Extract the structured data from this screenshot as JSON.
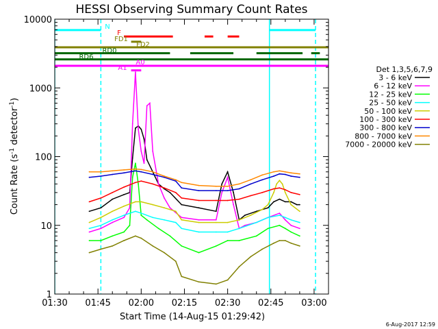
{
  "chart_data": {
    "type": "line",
    "title": "HESSI Observing Summary Count Rates",
    "xlabel": "Start Time (14-Aug-15 01:29:42)",
    "ylabel_main": "Count Rate (s",
    "ylabel_sup1": "-1",
    "ylabel_mid": " detector",
    "ylabel_sup2": "-1",
    "ylabel_end": ")",
    "x_axis_minutes": [
      0,
      95
    ],
    "y_scale": "log",
    "ylim": [
      1,
      10000
    ],
    "xticks": [
      {
        "m": 0,
        "label": "01:30"
      },
      {
        "m": 15,
        "label": "01:45"
      },
      {
        "m": 30,
        "label": "02:00"
      },
      {
        "m": 45,
        "label": "02:15"
      },
      {
        "m": 60,
        "label": "02:30"
      },
      {
        "m": 75,
        "label": "02:45"
      },
      {
        "m": 90,
        "label": "03:00"
      }
    ],
    "yticks": [
      {
        "v": 1,
        "label": "1"
      },
      {
        "v": 10,
        "label": "10"
      },
      {
        "v": 100,
        "label": "100"
      },
      {
        "v": 1000,
        "label": "1000"
      },
      {
        "v": 10000,
        "label": "10000"
      }
    ],
    "legend_title": "Det 1,3,5,6,7,9",
    "series": [
      {
        "name": "3 - 6 keV",
        "color": "#000000",
        "points": [
          [
            12,
            16
          ],
          [
            16,
            18
          ],
          [
            20,
            24
          ],
          [
            24,
            28
          ],
          [
            26,
            30
          ],
          [
            27,
            95
          ],
          [
            28,
            260
          ],
          [
            29,
            280
          ],
          [
            30,
            250
          ],
          [
            31,
            180
          ],
          [
            32,
            90
          ],
          [
            34,
            60
          ],
          [
            36,
            40
          ],
          [
            38,
            34
          ],
          [
            40,
            30
          ],
          [
            44,
            20
          ],
          [
            50,
            18
          ],
          [
            56,
            16
          ],
          [
            58,
            40
          ],
          [
            60,
            60
          ],
          [
            62,
            30
          ],
          [
            64,
            12
          ],
          [
            66,
            14
          ],
          [
            70,
            16
          ],
          [
            74,
            18
          ],
          [
            76,
            22
          ],
          [
            78,
            24
          ],
          [
            80,
            22
          ],
          [
            82,
            22
          ],
          [
            84,
            20
          ],
          [
            85,
            20
          ]
        ]
      },
      {
        "name": "6 - 12 keV",
        "color": "#ff00ff",
        "points": [
          [
            12,
            8
          ],
          [
            16,
            9
          ],
          [
            20,
            11
          ],
          [
            24,
            13
          ],
          [
            26,
            18
          ],
          [
            27,
            300
          ],
          [
            28,
            1700
          ],
          [
            29,
            250
          ],
          [
            30,
            120
          ],
          [
            31,
            80
          ],
          [
            32,
            550
          ],
          [
            33,
            600
          ],
          [
            34,
            120
          ],
          [
            36,
            40
          ],
          [
            38,
            25
          ],
          [
            40,
            18
          ],
          [
            44,
            13
          ],
          [
            50,
            12
          ],
          [
            56,
            12
          ],
          [
            58,
            30
          ],
          [
            60,
            50
          ],
          [
            62,
            20
          ],
          [
            64,
            9
          ],
          [
            66,
            10
          ],
          [
            70,
            11
          ],
          [
            74,
            13
          ],
          [
            78,
            15
          ],
          [
            80,
            12
          ],
          [
            82,
            10
          ],
          [
            85,
            9
          ]
        ]
      },
      {
        "name": "12 - 25 keV",
        "color": "#00ff00",
        "points": [
          [
            12,
            6
          ],
          [
            16,
            6
          ],
          [
            20,
            7
          ],
          [
            24,
            8
          ],
          [
            26,
            10
          ],
          [
            27,
            50
          ],
          [
            28,
            80
          ],
          [
            29,
            40
          ],
          [
            30,
            14
          ],
          [
            32,
            12
          ],
          [
            36,
            9
          ],
          [
            40,
            7
          ],
          [
            44,
            5
          ],
          [
            50,
            4
          ],
          [
            56,
            5
          ],
          [
            60,
            6
          ],
          [
            64,
            6
          ],
          [
            70,
            7
          ],
          [
            74,
            9
          ],
          [
            78,
            10
          ],
          [
            80,
            9
          ],
          [
            82,
            8
          ],
          [
            85,
            7
          ]
        ]
      },
      {
        "name": "25 - 50 keV",
        "color": "#00ffff",
        "points": [
          [
            12,
            9
          ],
          [
            16,
            10
          ],
          [
            20,
            12
          ],
          [
            24,
            14
          ],
          [
            28,
            16
          ],
          [
            30,
            15
          ],
          [
            34,
            13
          ],
          [
            38,
            12
          ],
          [
            42,
            11
          ],
          [
            44,
            9
          ],
          [
            50,
            8
          ],
          [
            56,
            8
          ],
          [
            60,
            8
          ],
          [
            64,
            9
          ],
          [
            70,
            11
          ],
          [
            74,
            13
          ],
          [
            78,
            14
          ],
          [
            80,
            13
          ],
          [
            82,
            12
          ],
          [
            85,
            11
          ]
        ]
      },
      {
        "name": "50 - 100 keV",
        "color": "#cccc00",
        "points": [
          [
            12,
            11
          ],
          [
            16,
            13
          ],
          [
            20,
            16
          ],
          [
            24,
            19
          ],
          [
            28,
            22
          ],
          [
            30,
            22
          ],
          [
            34,
            20
          ],
          [
            38,
            18
          ],
          [
            42,
            16
          ],
          [
            44,
            12
          ],
          [
            50,
            11
          ],
          [
            56,
            11
          ],
          [
            60,
            11
          ],
          [
            64,
            12
          ],
          [
            68,
            14
          ],
          [
            72,
            17
          ],
          [
            74,
            20
          ],
          [
            76,
            30
          ],
          [
            77,
            40
          ],
          [
            78,
            45
          ],
          [
            79,
            40
          ],
          [
            80,
            30
          ],
          [
            82,
            20
          ],
          [
            85,
            16
          ]
        ]
      },
      {
        "name": "100 - 300 keV",
        "color": "#ff0000",
        "points": [
          [
            12,
            22
          ],
          [
            16,
            25
          ],
          [
            20,
            30
          ],
          [
            24,
            36
          ],
          [
            28,
            42
          ],
          [
            30,
            44
          ],
          [
            34,
            40
          ],
          [
            38,
            35
          ],
          [
            42,
            30
          ],
          [
            44,
            25
          ],
          [
            50,
            23
          ],
          [
            56,
            23
          ],
          [
            60,
            23
          ],
          [
            64,
            24
          ],
          [
            68,
            27
          ],
          [
            72,
            30
          ],
          [
            76,
            34
          ],
          [
            78,
            35
          ],
          [
            80,
            33
          ],
          [
            82,
            30
          ],
          [
            85,
            28
          ]
        ]
      },
      {
        "name": "300 - 800 keV",
        "color": "#0000cc",
        "points": [
          [
            12,
            50
          ],
          [
            16,
            52
          ],
          [
            20,
            55
          ],
          [
            24,
            58
          ],
          [
            28,
            62
          ],
          [
            30,
            60
          ],
          [
            34,
            55
          ],
          [
            38,
            50
          ],
          [
            42,
            44
          ],
          [
            44,
            35
          ],
          [
            50,
            32
          ],
          [
            56,
            32
          ],
          [
            60,
            32
          ],
          [
            64,
            34
          ],
          [
            68,
            40
          ],
          [
            72,
            46
          ],
          [
            76,
            52
          ],
          [
            78,
            56
          ],
          [
            80,
            55
          ],
          [
            82,
            52
          ],
          [
            85,
            50
          ]
        ]
      },
      {
        "name": "800 - 7000 keV",
        "color": "#ff8800",
        "points": [
          [
            12,
            60
          ],
          [
            16,
            60
          ],
          [
            20,
            62
          ],
          [
            24,
            64
          ],
          [
            28,
            66
          ],
          [
            30,
            65
          ],
          [
            34,
            60
          ],
          [
            38,
            52
          ],
          [
            42,
            46
          ],
          [
            44,
            42
          ],
          [
            50,
            38
          ],
          [
            56,
            37
          ],
          [
            60,
            37
          ],
          [
            64,
            40
          ],
          [
            68,
            46
          ],
          [
            72,
            54
          ],
          [
            76,
            60
          ],
          [
            78,
            62
          ],
          [
            80,
            60
          ],
          [
            82,
            58
          ],
          [
            85,
            56
          ]
        ]
      },
      {
        "name": "7000 - 20000 keV",
        "color": "#808000",
        "points": [
          [
            12,
            4
          ],
          [
            16,
            4.5
          ],
          [
            20,
            5
          ],
          [
            24,
            6
          ],
          [
            28,
            7
          ],
          [
            30,
            6.5
          ],
          [
            34,
            5
          ],
          [
            38,
            4
          ],
          [
            42,
            3
          ],
          [
            44,
            1.8
          ],
          [
            50,
            1.5
          ],
          [
            56,
            1.4
          ],
          [
            60,
            1.6
          ],
          [
            64,
            2.5
          ],
          [
            68,
            3.5
          ],
          [
            72,
            4.5
          ],
          [
            76,
            5.5
          ],
          [
            78,
            6
          ],
          [
            80,
            6
          ],
          [
            82,
            5.5
          ],
          [
            85,
            5
          ]
        ]
      }
    ],
    "vlines": [
      {
        "m": 0,
        "style": "solid",
        "color": "#00ffff"
      },
      {
        "m": 16,
        "style": "dashed",
        "color": "#00ffff"
      },
      {
        "m": 74.5,
        "style": "solid",
        "color": "#00ffff"
      },
      {
        "m": 90.5,
        "style": "dashed",
        "color": "#00ffff"
      }
    ],
    "flags": [
      {
        "label": "N",
        "color": "#00ffff",
        "y": 6950,
        "segments": [
          [
            0,
            16
          ],
          [
            74.5,
            90.5
          ]
        ]
      },
      {
        "label": "F",
        "color": "#ff0000",
        "y": 5600,
        "segments": [
          [
            24,
            41
          ],
          [
            52,
            55
          ],
          [
            60,
            64
          ]
        ]
      },
      {
        "label": "FD1",
        "color": "#808000",
        "y": 4700,
        "segments": [
          [
            26.5,
            30
          ]
        ]
      },
      {
        "label": "FD2",
        "color": "#808000",
        "y": 3900,
        "segments": [
          [
            0,
            95
          ]
        ]
      },
      {
        "label": "RD0",
        "color": "#006600",
        "y": 3200,
        "segments": [
          [
            0,
            40
          ],
          [
            47,
            62
          ],
          [
            70,
            86
          ],
          [
            89,
            92
          ]
        ]
      },
      {
        "label": "RD6",
        "color": "#006600",
        "y": 2600,
        "segments": [
          [
            0,
            95
          ]
        ]
      },
      {
        "label": "A0",
        "color": "#ff00ff",
        "y": 2100,
        "segments": [
          [
            0,
            95
          ]
        ]
      },
      {
        "label": "A1",
        "color": "#ff00ff",
        "y": 1800,
        "segments": [
          [
            26.5,
            30
          ]
        ]
      }
    ]
  },
  "footer": {
    "date_stamp": "6-Aug-2017 12:59"
  }
}
